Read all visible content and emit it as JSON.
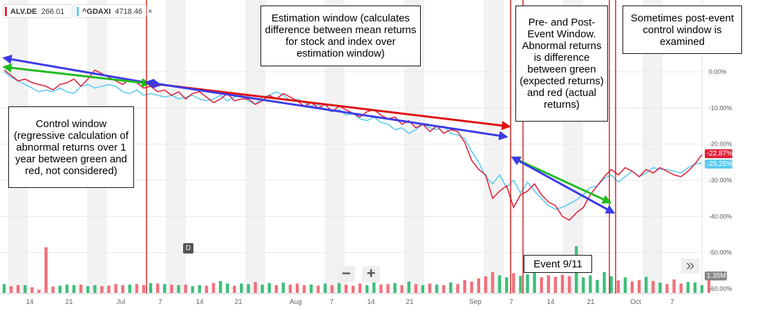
{
  "tickers": [
    {
      "symbol": "ALV.DE",
      "price": "266.01",
      "color": "#e0243b"
    },
    {
      "symbol": "^GDAXI",
      "price": "4718.46",
      "color": "#5ccbf0"
    }
  ],
  "close_symbol": "×",
  "chart_data": {
    "type": "line",
    "x_tick_labels": [
      "14",
      "21",
      "Jul",
      "7",
      "14",
      "21",
      "Aug",
      "7",
      "14",
      "21",
      "Sep",
      "7",
      "14",
      "21",
      "Oct",
      "7"
    ],
    "y_tick_labels": [
      "0.00%",
      "-10.00%",
      "-20.00%",
      "-30.00%",
      "-40.00%",
      "-50.00%",
      "-60.00%"
    ],
    "ylim": [
      -60,
      0
    ],
    "series": [
      {
        "name": "ALV.DE",
        "color": "#e0243b",
        "values": [
          0.5,
          -1,
          -2.5,
          -2,
          -3,
          -3.5,
          -4,
          -5,
          -3.5,
          -3,
          -2,
          -4,
          -2,
          0.5,
          -0.5,
          -1.5,
          -2.5,
          -3.5,
          -2,
          -3,
          -4.5,
          -4,
          -5.5,
          -5,
          -6.5,
          -5.5,
          -7.5,
          -6,
          -5.5,
          -7,
          -8.5,
          -7.5,
          -6,
          -8,
          -7.5,
          -7.5,
          -9,
          -8,
          -6.5,
          -7.5,
          -6,
          -7,
          -8,
          -9.5,
          -8.5,
          -10,
          -9,
          -11,
          -9.5,
          -10.5,
          -11.5,
          -12.5,
          -11,
          -10.5,
          -12,
          -13,
          -12.5,
          -14.5,
          -13.5,
          -15.5,
          -14.5,
          -16.5,
          -15,
          -17,
          -16,
          -16.5,
          -19.5,
          -24.5,
          -27,
          -28.5,
          -35,
          -33,
          -31.5,
          -37.5,
          -34,
          -33,
          -31,
          -34,
          -36,
          -37,
          -40,
          -41,
          -39,
          -37.5,
          -34,
          -31.5,
          -29,
          -27,
          -28.5,
          -26.5,
          -27.5,
          -29,
          -27,
          -28,
          -26.5,
          -27.5,
          -28.5,
          -29,
          -27.5,
          -25.5,
          -22.87
        ],
        "last_label": "-22.87%"
      },
      {
        "name": "^GDAXI",
        "color": "#5ccbf0",
        "values": [
          0,
          -1.5,
          -2.5,
          -3.5,
          -4.5,
          -5.5,
          -5,
          -5.5,
          -4.5,
          -5.5,
          -6,
          -4,
          -3.5,
          -4.5,
          -4,
          -3.5,
          -4,
          -5.5,
          -6,
          -5,
          -6.5,
          -6,
          -6.5,
          -7,
          -6.5,
          -7.5,
          -7,
          -6.5,
          -7.5,
          -8,
          -7.5,
          -6.5,
          -8,
          -7,
          -6.5,
          -8,
          -9,
          -7,
          -6.5,
          -5.5,
          -6.5,
          -8,
          -7.5,
          -8.5,
          -9.5,
          -9,
          -10.5,
          -11,
          -10.5,
          -12,
          -11.5,
          -13,
          -13.5,
          -12.5,
          -14,
          -14.5,
          -16,
          -15.5,
          -17,
          -16,
          -14.5,
          -15.5,
          -16,
          -15,
          -17,
          -17.5,
          -18.5,
          -22,
          -25,
          -29,
          -31,
          -28.5,
          -32,
          -30,
          -33.5,
          -30.5,
          -33,
          -35,
          -37,
          -38,
          -37.5,
          -36.5,
          -35.5,
          -34,
          -32,
          -31.5,
          -29.5,
          -28.5,
          -30.5,
          -29,
          -27.5,
          -29,
          -28,
          -26.5,
          -27,
          -27,
          -27.5,
          -28,
          -26.5,
          -25.5,
          -25.25
        ],
        "last_label": "-25.25%"
      }
    ],
    "volume": [
      1.7,
      1.3,
      1.5,
      1.5,
      1.1,
      0.6,
      8.8,
      1.2,
      1.4,
      1.6,
      1.5,
      1.6,
      1.3,
      1.5,
      1.3,
      1.4,
      1.7,
      1.5,
      1.6,
      1.7,
      1.5,
      1.9,
      1.8,
      1.7,
      1.6,
      1.5,
      1.6,
      1.3,
      1.5,
      1.4,
      1.9,
      2.3,
      1.8,
      1.4,
      1.8,
      1.7,
      2.1,
      1.6,
      1.9,
      1.5,
      2.0,
      1.6,
      1.8,
      1.5,
      1.6,
      1.4,
      1.8,
      1.5,
      1.9,
      1.6,
      1.4,
      1.8,
      1.5,
      2.0,
      1.6,
      1.7,
      1.9,
      1.5,
      2.2,
      1.7,
      1.5,
      1.8,
      1.6,
      1.5,
      2.0,
      1.7,
      2.5,
      2.2,
      2.8,
      3.2,
      4.0,
      3.4,
      3.0,
      3.8,
      3.3,
      3.6,
      3.9,
      3.0,
      3.4,
      3.1,
      3.5,
      3.2,
      9.0,
      3.0,
      3.4,
      2.5,
      4.0,
      3.2,
      2.4,
      3.0,
      2.2,
      2.5,
      3.1,
      2.3,
      2.0,
      1.7,
      2.6,
      1.8,
      2.1,
      2.0,
      1.5,
      2.6
    ],
    "volume_label": "1.35M"
  },
  "d_marker": "D",
  "zoom": {
    "minus": "−",
    "plus": "+"
  },
  "scroll_icon": "»",
  "annotations": {
    "estimation": "Estimation window (calculates difference between mean returns for stock and index over estimation window)",
    "pre_post": "Pre- and Post-Event Window. Abnormal returns is difference between green (expected returns) and red (actual returns)",
    "post_control": "Sometimes post-event control window is examined",
    "control": "Control window (regressive calculation of abnormal returns over 1 year between green and red, not considered)",
    "event": "Event 9/11"
  },
  "colors": {
    "red_line": "#d40000",
    "green_arrow": "#22bb22",
    "blue_arrow": "#3b3be6",
    "red_arrow": "#e01010"
  }
}
